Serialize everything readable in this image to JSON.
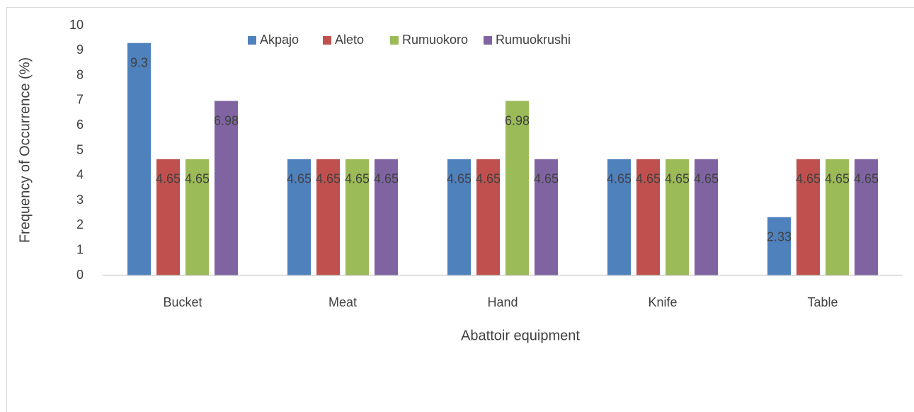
{
  "chart_data": {
    "type": "bar",
    "categories": [
      "Bucket",
      "Meat",
      "Hand",
      "Knife",
      "Table"
    ],
    "series": [
      {
        "name": "Akpajo",
        "color": "#4f81bd",
        "values": [
          9.3,
          4.65,
          4.65,
          4.65,
          2.33
        ]
      },
      {
        "name": "Aleto",
        "color": "#c0504d",
        "values": [
          4.65,
          4.65,
          4.65,
          4.65,
          4.65
        ]
      },
      {
        "name": "Rumuokoro",
        "color": "#9bbb59",
        "values": [
          4.65,
          4.65,
          6.98,
          4.65,
          4.65
        ]
      },
      {
        "name": "Rumuokrushi",
        "color": "#8064a2",
        "values": [
          6.98,
          4.65,
          4.65,
          4.65,
          4.65
        ]
      }
    ],
    "ylim": [
      0,
      10
    ],
    "yticks": [
      0,
      1,
      2,
      3,
      4,
      5,
      6,
      7,
      8,
      9,
      10
    ],
    "x_label": "Abattoir equipment",
    "y_label": "Frequency of Occurrence (%)",
    "legend": "top",
    "grid": false
  }
}
